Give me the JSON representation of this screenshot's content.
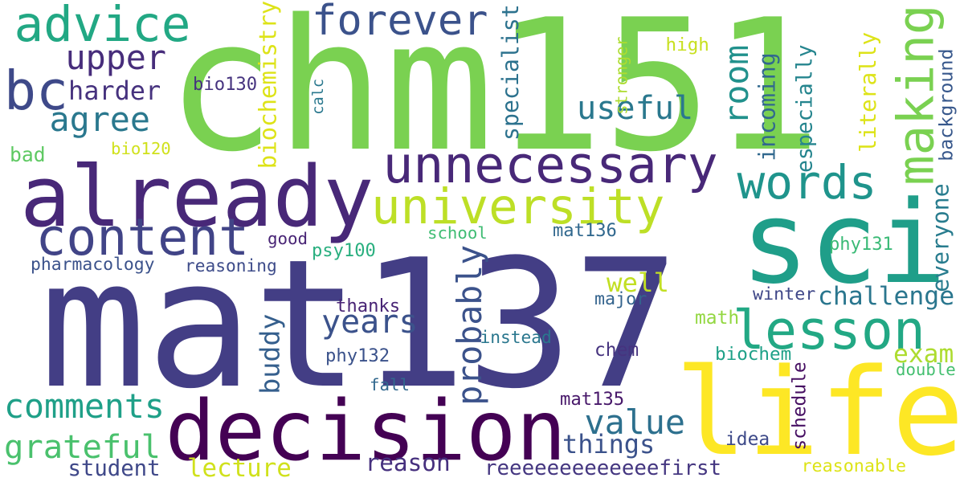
{
  "words": [
    {
      "t": "mat137",
      "c": "#433e85"
    },
    {
      "t": "chm151",
      "c": "#7ad151"
    },
    {
      "t": "sci",
      "c": "#1f9e89"
    },
    {
      "t": "life",
      "c": "#fde725"
    },
    {
      "t": "decision",
      "c": "#440154"
    },
    {
      "t": "already",
      "c": "#482878"
    },
    {
      "t": "unnecessary",
      "c": "#482878"
    },
    {
      "t": "content",
      "c": "#414487"
    },
    {
      "t": "university",
      "c": "#bddf26"
    },
    {
      "t": "lesson",
      "c": "#22a884"
    },
    {
      "t": "advice",
      "c": "#22a884"
    },
    {
      "t": "forever",
      "c": "#3b528b"
    },
    {
      "t": "bc",
      "c": "#3e4989"
    },
    {
      "t": "words",
      "c": "#1f948c"
    },
    {
      "t": "making",
      "c": "#7ad151"
    },
    {
      "t": "useful",
      "c": "#2a788e"
    },
    {
      "t": "room",
      "c": "#21918c"
    },
    {
      "t": "upper",
      "c": "#472d7b"
    },
    {
      "t": "agree",
      "c": "#2a788e"
    },
    {
      "t": "harder",
      "c": "#46327e"
    },
    {
      "t": "bio130",
      "c": "#46337f"
    },
    {
      "t": "bad",
      "c": "#5ec962"
    },
    {
      "t": "bio120",
      "c": "#d0e11c"
    },
    {
      "t": "biochemistry",
      "c": "#dde318"
    },
    {
      "t": "calc",
      "c": "#2a788e"
    },
    {
      "t": "specialist",
      "c": "#2c728e"
    },
    {
      "t": "stronger",
      "c": "#addc30"
    },
    {
      "t": "high",
      "c": "#c8e020"
    },
    {
      "t": "incoming",
      "c": "#31688e"
    },
    {
      "t": "especially",
      "c": "#25858e"
    },
    {
      "t": "literally",
      "c": "#dde318"
    },
    {
      "t": "background",
      "c": "#38588c"
    },
    {
      "t": "probably",
      "c": "#3b528b"
    },
    {
      "t": "years",
      "c": "#3b528b"
    },
    {
      "t": "good",
      "c": "#482475"
    },
    {
      "t": "psy100",
      "c": "#29af7f"
    },
    {
      "t": "school",
      "c": "#3fbc73"
    },
    {
      "t": "mat136",
      "c": "#31688e"
    },
    {
      "t": "phy131",
      "c": "#3aba76"
    },
    {
      "t": "everyone",
      "c": "#287c8e"
    },
    {
      "t": "pharmacology",
      "c": "#3b528b"
    },
    {
      "t": "reasoning",
      "c": "#3e4c8a"
    },
    {
      "t": "well",
      "c": "#c2df23"
    },
    {
      "t": "challenge",
      "c": "#2a768e"
    },
    {
      "t": "thanks",
      "c": "#482475"
    },
    {
      "t": "major",
      "c": "#33638d"
    },
    {
      "t": "winter",
      "c": "#3f4788"
    },
    {
      "t": "buddy",
      "c": "#355f8d"
    },
    {
      "t": "math",
      "c": "#93d741"
    },
    {
      "t": "exam",
      "c": "#addc30"
    },
    {
      "t": "instead",
      "c": "#2a778e"
    },
    {
      "t": "phy132",
      "c": "#3b528b"
    },
    {
      "t": "chem",
      "c": "#46337f"
    },
    {
      "t": "biochem",
      "c": "#1fa188"
    },
    {
      "t": "double",
      "c": "#44bf70"
    },
    {
      "t": "fall",
      "c": "#31688e"
    },
    {
      "t": "schedule",
      "c": "#471063"
    },
    {
      "t": "comments",
      "c": "#1fa088"
    },
    {
      "t": "value",
      "c": "#2d708e"
    },
    {
      "t": "mat135",
      "c": "#48186a"
    },
    {
      "t": "grateful",
      "c": "#4ac16d"
    },
    {
      "t": "things",
      "c": "#3b528b"
    },
    {
      "t": "idea",
      "c": "#3e4a89"
    },
    {
      "t": "student",
      "c": "#3f4889"
    },
    {
      "t": "lecture",
      "c": "#d0e11c"
    },
    {
      "t": "reason",
      "c": "#46307e"
    },
    {
      "t": "reeeeeeeeeeeeefirst",
      "c": "#453781"
    },
    {
      "t": "reasonable",
      "c": "#dde318"
    }
  ]
}
